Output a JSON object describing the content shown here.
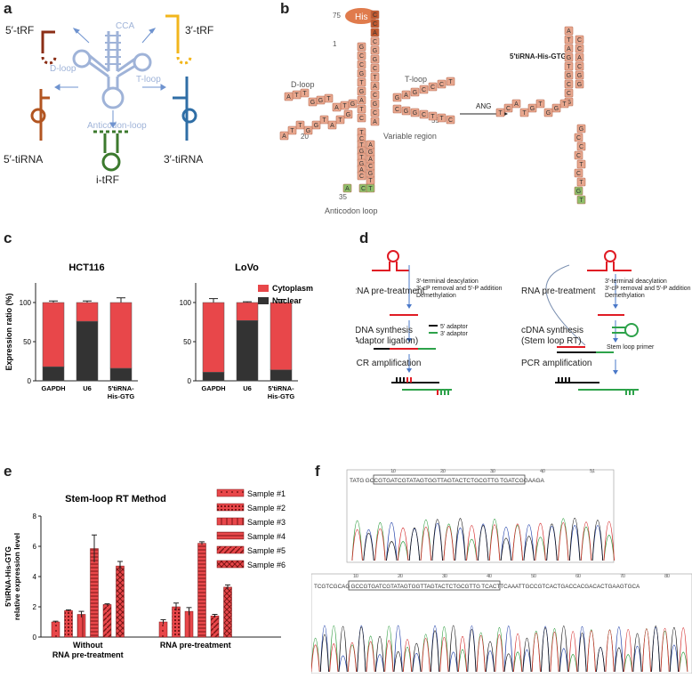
{
  "panels": {
    "a": {
      "label": "a",
      "fragments": [
        "5′-tRF",
        "3′-tRF",
        "5′-tiRNA",
        "3′-tiRNA",
        "i-tRF"
      ],
      "loops": [
        "CCA",
        "D-loop",
        "T-loop",
        "Anticodon-loop"
      ],
      "colors": {
        "trna": "#9fb3d8",
        "tRF5": "#8b2e16",
        "tRF3": "#f2b61c",
        "tiRNA5": "#b25521",
        "tiRNA3": "#2f6ea6",
        "itRF": "#3c7a2e"
      }
    },
    "b": {
      "label": "b",
      "his_label": "His",
      "numbers": [
        "75",
        "1",
        "20",
        "55",
        "35"
      ],
      "region_labels": [
        "D-loop",
        "T-loop",
        "Variable region",
        "Anticodon loop"
      ],
      "arrow_label": "ANG",
      "product_title": "5′tiRNA-His-GTG",
      "acceptor_stem": [
        "G",
        "C",
        "C",
        "G",
        "T",
        "G",
        "A",
        "T",
        "C"
      ],
      "acceptor_tail": [
        "C",
        "C",
        "A",
        "C",
        "G",
        "G",
        "C",
        "T",
        "A",
        "C",
        "G",
        "C",
        "A"
      ],
      "d_arm": [
        "G",
        "T",
        "A",
        "T",
        "G",
        "G",
        "T",
        "T",
        "A",
        "G",
        "T",
        "A",
        "T",
        "G",
        "G",
        "T",
        "T",
        "A"
      ],
      "t_arm": [
        "G",
        "A",
        "G",
        "C",
        "C",
        "C",
        "T",
        "C",
        "G",
        "G",
        "C",
        "T",
        "T",
        "C"
      ],
      "anticodon_arm": [
        "T",
        "C",
        "T",
        "G",
        "T",
        "G",
        "A",
        "C",
        "A",
        "C",
        "T",
        "T",
        "G",
        "C",
        "A",
        "G",
        "A"
      ],
      "product_bases": [
        "G",
        "C",
        "C",
        "G",
        "T",
        "G",
        "A",
        "T",
        "A",
        "T",
        "G",
        "G",
        "T",
        "G",
        "T",
        "A",
        "C",
        "T",
        "G",
        "C",
        "C",
        "C",
        "T",
        "C",
        "T",
        "G",
        "T"
      ],
      "colors": {
        "base": "#e8a78e",
        "base_stroke": "#b86f55",
        "gtg": "#8fbf6a",
        "his": "#e07b4c",
        "cca": "#c0592f"
      }
    },
    "c": {
      "label": "c",
      "chart_data": [
        {
          "type": "bar",
          "title": "HCT116",
          "ylabel": "Expression ratio (%)",
          "ylim": [
            0,
            125
          ],
          "yticks": [
            0,
            25,
            50,
            75,
            100,
            125
          ],
          "categories": [
            "GAPDH",
            "U6",
            "5′tiRNA-His-GTG"
          ],
          "category_lines": [
            [
              "GAPDH"
            ],
            [
              "U6"
            ],
            [
              "5′tiRNA-",
              "His-GTG"
            ]
          ],
          "series": [
            {
              "name": "Nuclear",
              "values": [
                18,
                76,
                16
              ],
              "color": "#333333"
            },
            {
              "name": "Cytoplasm",
              "values": [
                82,
                24,
                84
              ],
              "color": "#e8474a"
            }
          ],
          "errors": [
            2,
            2,
            6
          ]
        },
        {
          "type": "bar",
          "title": "LoVo",
          "ylabel": "",
          "ylim": [
            0,
            125
          ],
          "yticks": [
            0,
            50,
            100,
            150
          ],
          "categories": [
            "GAPDH",
            "U6",
            "5′tiRNA-His-GTG"
          ],
          "category_lines": [
            [
              "GAPDH"
            ],
            [
              "U6"
            ],
            [
              "5′tiRNA-",
              "His-GTG"
            ]
          ],
          "series": [
            {
              "name": "Nuclear",
              "values": [
                11,
                77,
                14
              ],
              "color": "#333333"
            },
            {
              "name": "Cytoplasm",
              "values": [
                89,
                23,
                86
              ],
              "color": "#e8474a"
            }
          ],
          "errors": [
            5,
            1,
            4
          ]
        }
      ],
      "legend": [
        "Cytoplasm",
        "Nuclear"
      ]
    },
    "d": {
      "label": "d",
      "left": {
        "step1": "RNA pre-treatment",
        "step1_notes": [
          "3′-terminal deacylation",
          "3′-cP removal and 5′-P addition",
          "Demethylation"
        ],
        "step2": [
          "cDNA synthesis",
          "(Adaptor ligation)"
        ],
        "adaptors": [
          "5′ adaptor",
          "3′ adaptor"
        ],
        "step3": "PCR amplification"
      },
      "right": {
        "step1": "RNA pre-treatment",
        "step1_notes": [
          "3′-terminal deacylation",
          "3′-cP removal and 5′-P addition",
          "Demethylation"
        ],
        "step2": [
          "cDNA synthesis",
          "(Stem loop RT)"
        ],
        "primer": "Stem loop primer",
        "step3": "PCR amplification"
      },
      "colors": {
        "rna": "#e01b24",
        "adaptor5": "#111111",
        "adaptor3": "#2da24a",
        "arrow": "#4a78c8"
      }
    },
    "e": {
      "label": "e",
      "chart_data": {
        "type": "bar",
        "title": "Stem-loop RT Method",
        "ylabel": [
          "5′tiRNA-His-GTG",
          "relative expression level"
        ],
        "ylim": [
          0,
          8
        ],
        "yticks": [
          0,
          2,
          4,
          6,
          8
        ],
        "categories": [
          "Without RNA pre-treatment",
          "RNA pre-treatment"
        ],
        "category_lines": [
          [
            "Without",
            "RNA pre-treatment"
          ],
          [
            "RNA pre-treatment"
          ]
        ],
        "series": [
          {
            "name": "Sample #1",
            "values": [
              1.0,
              1.0
            ]
          },
          {
            "name": "Sample #2",
            "values": [
              1.75,
              2.0
            ]
          },
          {
            "name": "Sample #3",
            "values": [
              1.5,
              1.7
            ]
          },
          {
            "name": "Sample #4",
            "values": [
              5.85,
              6.2
            ]
          },
          {
            "name": "Sample #5",
            "values": [
              2.15,
              1.4
            ]
          },
          {
            "name": "Sample #6",
            "values": [
              4.7,
              3.3
            ]
          }
        ],
        "errors": [
          [
            0.05,
            0.15
          ],
          [
            0.05,
            0.25
          ],
          [
            0.2,
            0.25
          ],
          [
            0.9,
            0.1
          ],
          [
            0.05,
            0.1
          ],
          [
            0.3,
            0.15
          ]
        ],
        "color": "#e8474a"
      }
    },
    "f": {
      "label": "f",
      "trace1_seq": "TATG GCCGTGATCGTATAGTGGTTAGTACTCTGCGTTG TGATCGGAAGA",
      "trace1_ticks": [
        "10",
        "20",
        "30",
        "40",
        "51"
      ],
      "trace2_seq": "TCGTCGCAG GCCGTGATCGTATAGTGGTTAGTACTCTGCGTTG TCACTTCAAATTGCCGTCACTGACCACGACACTGAAGTGCA",
      "trace2_ticks": [
        "10",
        "20",
        "30",
        "40",
        "50",
        "60",
        "70",
        "80"
      ]
    }
  }
}
